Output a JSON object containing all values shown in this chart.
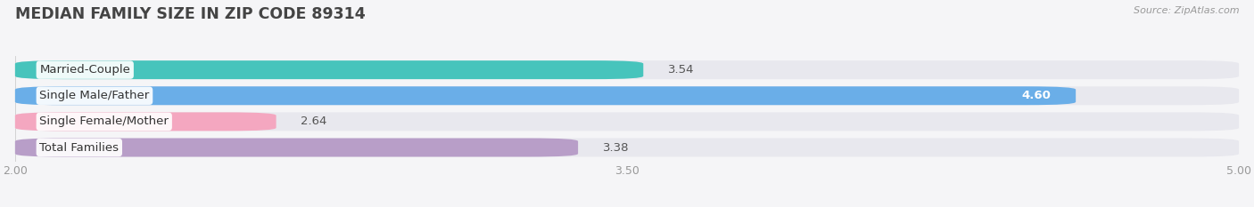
{
  "title": "MEDIAN FAMILY SIZE IN ZIP CODE 89314",
  "source": "Source: ZipAtlas.com",
  "categories": [
    "Married-Couple",
    "Single Male/Father",
    "Single Female/Mother",
    "Total Families"
  ],
  "values": [
    3.54,
    4.6,
    2.64,
    3.38
  ],
  "bar_colors": [
    "#47C4BC",
    "#6aaee8",
    "#f4a7c0",
    "#b89ec8"
  ],
  "bar_bg_color": "#e8e8ee",
  "xlim": [
    2.0,
    5.0
  ],
  "xticks": [
    2.0,
    3.5,
    5.0
  ],
  "value_inside": [
    false,
    true,
    false,
    false
  ],
  "fig_bg_color": "#f5f5f7",
  "title_color": "#444444",
  "tick_color": "#999999",
  "source_color": "#999999",
  "label_fontsize": 9.5,
  "value_fontsize": 9.5,
  "title_fontsize": 12.5
}
